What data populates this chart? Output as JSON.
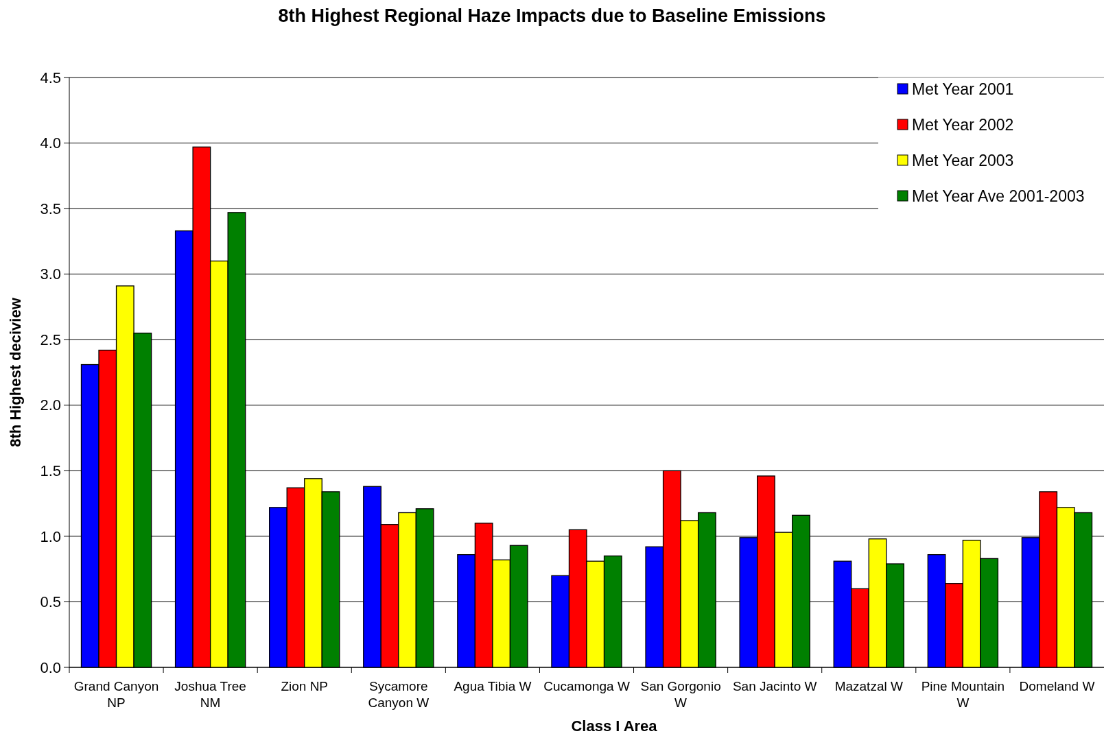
{
  "chart_data": {
    "type": "bar",
    "title": "8th Highest Regional Haze Impacts due to Baseline Emissions",
    "xlabel": "Class I Area",
    "ylabel": "8th Highest deciview",
    "categories": [
      "Grand Canyon NP",
      "Joshua Tree NM",
      "Zion NP",
      "Sycamore Canyon W",
      "Agua Tibia W",
      "Cucamonga W",
      "San Gorgonio W",
      "San Jacinto W",
      "Mazatzal W",
      "Pine Mountain W",
      "Domeland W"
    ],
    "series": [
      {
        "name": "Met Year 2001",
        "color": "#0000ff",
        "values": [
          2.31,
          3.33,
          1.22,
          1.38,
          0.86,
          0.7,
          0.92,
          0.99,
          0.81,
          0.86,
          0.99
        ]
      },
      {
        "name": "Met Year 2002",
        "color": "#ff0000",
        "values": [
          2.42,
          3.97,
          1.37,
          1.09,
          1.1,
          1.05,
          1.5,
          1.46,
          0.6,
          0.64,
          1.34
        ]
      },
      {
        "name": "Met Year 2003",
        "color": "#ffff00",
        "values": [
          2.91,
          3.1,
          1.44,
          1.18,
          0.82,
          0.81,
          1.12,
          1.03,
          0.98,
          0.97,
          1.22
        ]
      },
      {
        "name": "Met Year Ave 2001-2003",
        "color": "#008000",
        "values": [
          2.55,
          3.47,
          1.34,
          1.21,
          0.93,
          0.85,
          1.18,
          1.16,
          0.79,
          0.83,
          1.18
        ]
      }
    ],
    "ylim": [
      0,
      4.5
    ],
    "yticks": [
      {
        "value": 0,
        "label": "0.0"
      },
      {
        "value": 0.5,
        "label": "0.5"
      },
      {
        "value": 1,
        "label": "1.0"
      },
      {
        "value": 1.5,
        "label": "1.5"
      },
      {
        "value": 2,
        "label": "2.0"
      },
      {
        "value": 2.5,
        "label": "2.5"
      },
      {
        "value": 3,
        "label": "3.0"
      },
      {
        "value": 3.5,
        "label": "3.5"
      },
      {
        "value": 4,
        "label": "4.0"
      },
      {
        "value": 4.5,
        "label": "4.5"
      }
    ],
    "grid": "y",
    "legend": "top right"
  }
}
